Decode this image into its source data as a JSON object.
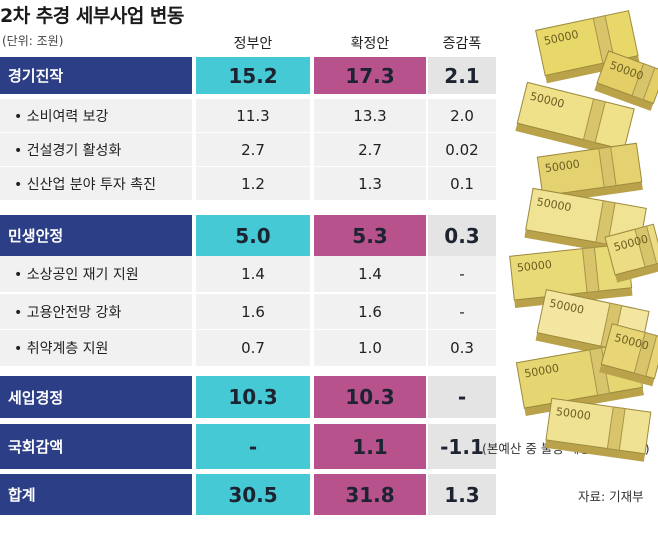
{
  "chart_data": {
    "type": "table",
    "title": "2차 추경 세부사업 변동",
    "unit": "(단위: 조원)",
    "columns": [
      "정부안",
      "확정안",
      "증감폭"
    ],
    "rows": [
      {
        "label": "경기진작",
        "kind": "section",
        "values": [
          "15.2",
          "17.3",
          "2.1"
        ]
      },
      {
        "label": "• 소비여력 보강",
        "kind": "item",
        "values": [
          "11.3",
          "13.3",
          "2.0"
        ]
      },
      {
        "label": "• 건설경기 활성화",
        "kind": "item",
        "values": [
          "2.7",
          "2.7",
          "0.02"
        ]
      },
      {
        "label": "• 신산업 분야 투자 촉진",
        "kind": "item",
        "values": [
          "1.2",
          "1.3",
          "0.1"
        ]
      },
      {
        "label": "민생안정",
        "kind": "section",
        "values": [
          "5.0",
          "5.3",
          "0.3"
        ]
      },
      {
        "label": "• 소상공인 재기 지원",
        "kind": "item",
        "values": [
          "1.4",
          "1.4",
          "-"
        ]
      },
      {
        "label": "• 고용안전망 강화",
        "kind": "item",
        "values": [
          "1.6",
          "1.6",
          "-"
        ]
      },
      {
        "label": "• 취약계층 지원",
        "kind": "item",
        "values": [
          "0.7",
          "1.0",
          "0.3"
        ]
      },
      {
        "label": "세입경정",
        "kind": "section",
        "values": [
          "10.3",
          "10.3",
          "-"
        ]
      },
      {
        "label": "국회감액",
        "kind": "section",
        "values": [
          "-",
          "1.1",
          "-1.1"
        ],
        "note": "(본예산 중 불용 예상 예산 삭감)"
      },
      {
        "label": "합계",
        "kind": "section",
        "values": [
          "30.5",
          "31.8",
          "1.3"
        ],
        "note": "자료: 기재부"
      }
    ]
  },
  "colors": {
    "navy": "#2c3e85",
    "cyan": "#45c9d5",
    "magenta": "#b8528d",
    "gray": "#e4e4e4",
    "light": "#f1f1f1"
  },
  "illustration": {
    "icon": "money-stack-icon",
    "text": "50000"
  }
}
